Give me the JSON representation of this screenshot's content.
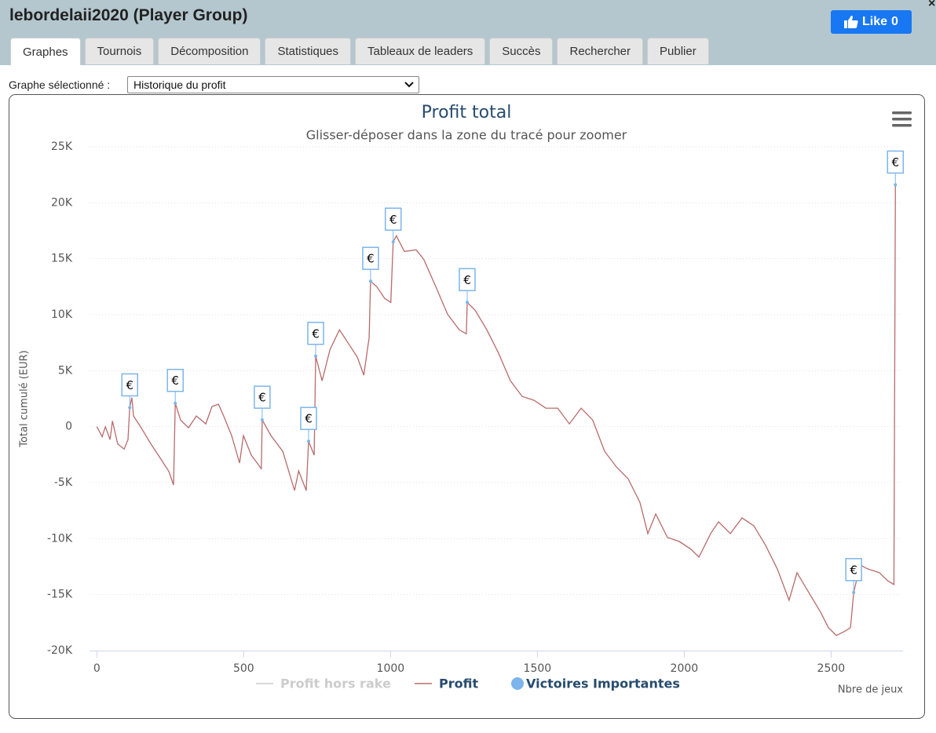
{
  "header": {
    "title": "lebordelaii2020 (Player Group)",
    "like": {
      "label": "Like",
      "count": 0
    }
  },
  "tabs": [
    "Graphes",
    "Tournois",
    "Décomposition",
    "Statistiques",
    "Tableaux de leaders",
    "Succès",
    "Rechercher",
    "Publier"
  ],
  "active_tab": 0,
  "selector": {
    "label": "Graphe sélectionné :",
    "value": "Historique du profit"
  },
  "chart_data": {
    "type": "line",
    "title": "Profit total",
    "subtitle": "Glisser-déposer dans la zone du tracé pour zoomer",
    "x_label": "Nbre de jeux",
    "y_label": "Total cumulé (EUR)",
    "xlim": [
      -25,
      2745
    ],
    "ylim": [
      -20000,
      25000
    ],
    "xticks": [
      0,
      500,
      1000,
      1500,
      2000,
      2500
    ],
    "yticks": [
      {
        "value": -20000,
        "label": "-20K"
      },
      {
        "value": -15000,
        "label": "-15K"
      },
      {
        "value": -10000,
        "label": "-10K"
      },
      {
        "value": -5000,
        "label": "-5K"
      },
      0,
      {
        "value": 5000,
        "label": "5K"
      },
      {
        "value": 10000,
        "label": "10K"
      },
      {
        "value": 15000,
        "label": "15K"
      },
      {
        "value": 20000,
        "label": "20K"
      },
      {
        "value": 25000,
        "label": "25K"
      }
    ],
    "grid": true,
    "series": [
      {
        "name": "Profit hors rake",
        "color": "#cccccc",
        "visible": false
      },
      {
        "name": "Profit",
        "color": "#b86b6b",
        "visible": true,
        "x": [
          0,
          18,
          29,
          45,
          53,
          71,
          93,
          106,
          112,
          119,
          125,
          151,
          183,
          218,
          245,
          261,
          267,
          285,
          312,
          339,
          371,
          392,
          414,
          432,
          459,
          486,
          499,
          526,
          560,
          563,
          593,
          633,
          673,
          687,
          713,
          721,
          740,
          745,
          767,
          794,
          826,
          861,
          887,
          909,
          927,
          932,
          953,
          980,
          1001,
          1009,
          1020,
          1047,
          1087,
          1113,
          1154,
          1194,
          1234,
          1258,
          1261,
          1288,
          1328,
          1368,
          1408,
          1448,
          1489,
          1529,
          1569,
          1609,
          1649,
          1688,
          1729,
          1769,
          1809,
          1849,
          1876,
          1903,
          1943,
          1983,
          2023,
          2050,
          2090,
          2117,
          2157,
          2197,
          2237,
          2277,
          2317,
          2357,
          2384,
          2424,
          2464,
          2491,
          2518,
          2545,
          2566,
          2577,
          2599,
          2625,
          2665,
          2692,
          2714,
          2719
        ],
        "values": [
          0,
          -900,
          0,
          -1150,
          500,
          -1550,
          -2000,
          -1150,
          1700,
          2600,
          950,
          -100,
          -1500,
          -2900,
          -4000,
          -5200,
          2100,
          600,
          -100,
          950,
          250,
          1800,
          2000,
          950,
          -800,
          -3250,
          -800,
          -2550,
          -3750,
          600,
          -800,
          -2200,
          -5700,
          -3950,
          -5700,
          -1300,
          -2550,
          6300,
          4100,
          6900,
          8650,
          7250,
          6200,
          4600,
          7950,
          13000,
          12500,
          11450,
          11100,
          16500,
          17050,
          15650,
          15800,
          14950,
          12500,
          10050,
          8650,
          8300,
          11100,
          10400,
          8650,
          6550,
          4100,
          2700,
          2350,
          1650,
          1650,
          250,
          1650,
          600,
          -2200,
          -3600,
          -4650,
          -6750,
          -9550,
          -7800,
          -9900,
          -10250,
          -10950,
          -11650,
          -9550,
          -8500,
          -9550,
          -8150,
          -8850,
          -10600,
          -12700,
          -15500,
          -13050,
          -14800,
          -16550,
          -17950,
          -18650,
          -18300,
          -17950,
          -14800,
          -12350,
          -12700,
          -13050,
          -13750,
          -14100,
          21600
        ]
      },
      {
        "name": "Victoires Importantes",
        "color": "#7cb5ec",
        "visible": true,
        "label": "€",
        "x": [
          112,
          267,
          563,
          721,
          745,
          932,
          1009,
          1261,
          2577,
          2719
        ],
        "values": [
          1700,
          2100,
          600,
          -1300,
          6300,
          13000,
          16500,
          11100,
          -14800,
          21600
        ]
      }
    ]
  }
}
